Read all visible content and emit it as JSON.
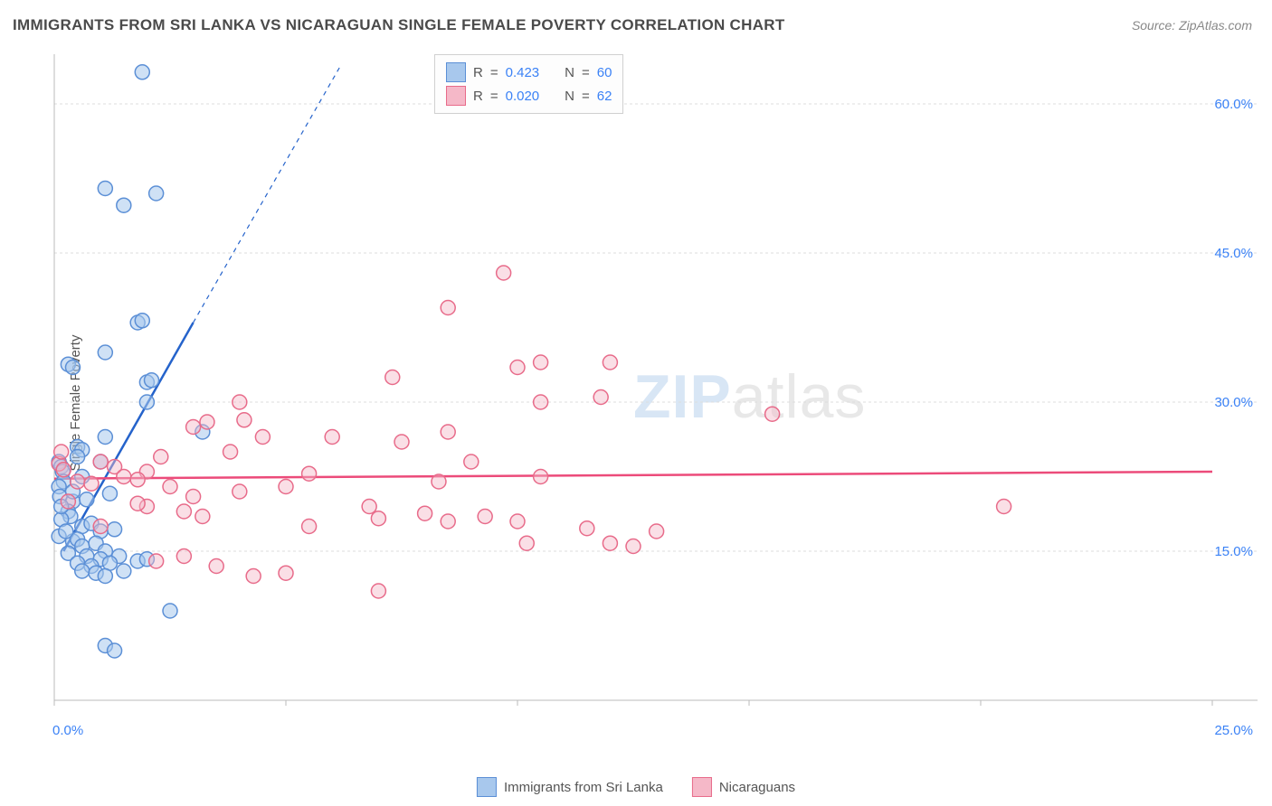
{
  "title": "IMMIGRANTS FROM SRI LANKA VS NICARAGUAN SINGLE FEMALE POVERTY CORRELATION CHART",
  "source": "Source: ZipAtlas.com",
  "y_axis_label": "Single Female Poverty",
  "watermark": {
    "zip": "ZIP",
    "atlas": "atlas"
  },
  "chart": {
    "type": "scatter",
    "xlim": [
      0,
      25
    ],
    "ylim": [
      0,
      65
    ],
    "x_ticks": [
      0,
      5,
      10,
      15,
      20,
      25
    ],
    "x_tick_labels": [
      "0.0%",
      "",
      "",
      "",
      "",
      "25.0%"
    ],
    "y_ticks": [
      15,
      30,
      45,
      60
    ],
    "y_tick_labels": [
      "15.0%",
      "30.0%",
      "45.0%",
      "60.0%"
    ],
    "grid_color": "#dddddd",
    "axis_color": "#bbbbbb",
    "background_color": "#ffffff",
    "marker_radius": 8,
    "marker_stroke_width": 1.5,
    "series": [
      {
        "name": "Immigrants from Sri Lanka",
        "color_fill": "#a8c8ed",
        "color_stroke": "#5b8fd6",
        "fill_opacity": 0.55,
        "R": "0.423",
        "N": "60",
        "trendline": {
          "x1": 0.2,
          "y1": 15,
          "x2": 3.0,
          "y2": 38,
          "solid_until_x": 3.0,
          "dash_to_x": 6.2,
          "dash_to_y": 64,
          "color": "#2563cb",
          "width": 2.5
        },
        "points": [
          [
            1.9,
            63.2
          ],
          [
            1.1,
            51.5
          ],
          [
            2.2,
            51.0
          ],
          [
            1.5,
            49.8
          ],
          [
            1.8,
            38.0
          ],
          [
            1.9,
            38.2
          ],
          [
            1.1,
            35.0
          ],
          [
            0.3,
            33.8
          ],
          [
            0.4,
            33.5
          ],
          [
            2.0,
            32.0
          ],
          [
            2.1,
            32.2
          ],
          [
            2.0,
            30.0
          ],
          [
            3.2,
            27.0
          ],
          [
            1.1,
            26.5
          ],
          [
            0.5,
            25.5
          ],
          [
            0.6,
            25.2
          ],
          [
            0.1,
            24.0
          ],
          [
            0.15,
            23.5
          ],
          [
            0.18,
            23.0
          ],
          [
            1.0,
            24.0
          ],
          [
            0.2,
            22.0
          ],
          [
            0.1,
            21.5
          ],
          [
            0.6,
            22.5
          ],
          [
            0.12,
            20.5
          ],
          [
            0.4,
            20.0
          ],
          [
            0.7,
            20.2
          ],
          [
            1.2,
            20.8
          ],
          [
            0.3,
            19.0
          ],
          [
            0.35,
            18.5
          ],
          [
            0.15,
            18.2
          ],
          [
            0.6,
            17.5
          ],
          [
            0.8,
            17.8
          ],
          [
            1.0,
            17.0
          ],
          [
            1.3,
            17.2
          ],
          [
            0.4,
            16.0
          ],
          [
            0.5,
            16.2
          ],
          [
            0.6,
            15.5
          ],
          [
            0.9,
            15.8
          ],
          [
            1.1,
            15.0
          ],
          [
            0.3,
            14.8
          ],
          [
            0.7,
            14.5
          ],
          [
            1.0,
            14.2
          ],
          [
            1.4,
            14.5
          ],
          [
            0.5,
            13.8
          ],
          [
            0.8,
            13.5
          ],
          [
            1.2,
            13.8
          ],
          [
            1.8,
            14.0
          ],
          [
            2.0,
            14.2
          ],
          [
            0.6,
            13.0
          ],
          [
            0.9,
            12.8
          ],
          [
            1.1,
            12.5
          ],
          [
            1.5,
            13.0
          ],
          [
            2.5,
            9.0
          ],
          [
            1.1,
            5.5
          ],
          [
            1.3,
            5.0
          ],
          [
            0.1,
            16.5
          ],
          [
            0.25,
            17.0
          ],
          [
            0.4,
            21.0
          ],
          [
            0.15,
            19.5
          ],
          [
            0.5,
            24.5
          ]
        ]
      },
      {
        "name": "Nicaraguans",
        "color_fill": "#f5b8c8",
        "color_stroke": "#e86b8a",
        "fill_opacity": 0.45,
        "R": "0.020",
        "N": "62",
        "trendline": {
          "x1": 0,
          "y1": 22.3,
          "x2": 25,
          "y2": 23.0,
          "color": "#ec4b7a",
          "width": 2.5
        },
        "points": [
          [
            9.7,
            43.0
          ],
          [
            8.5,
            39.5
          ],
          [
            10.5,
            34.0
          ],
          [
            12.0,
            34.0
          ],
          [
            15.5,
            28.8
          ],
          [
            7.3,
            32.5
          ],
          [
            4.0,
            30.0
          ],
          [
            3.3,
            28.0
          ],
          [
            4.1,
            28.2
          ],
          [
            3.0,
            27.5
          ],
          [
            4.5,
            26.5
          ],
          [
            8.5,
            27.0
          ],
          [
            10.0,
            33.5
          ],
          [
            7.5,
            26.0
          ],
          [
            10.5,
            30.0
          ],
          [
            2.3,
            24.5
          ],
          [
            3.8,
            25.0
          ],
          [
            1.0,
            24.0
          ],
          [
            1.3,
            23.5
          ],
          [
            2.0,
            23.0
          ],
          [
            1.5,
            22.5
          ],
          [
            0.5,
            22.0
          ],
          [
            0.8,
            21.8
          ],
          [
            1.8,
            22.2
          ],
          [
            2.5,
            21.5
          ],
          [
            3.0,
            20.5
          ],
          [
            4.0,
            21.0
          ],
          [
            2.0,
            19.5
          ],
          [
            2.8,
            19.0
          ],
          [
            0.3,
            20.0
          ],
          [
            3.2,
            18.5
          ],
          [
            5.0,
            21.5
          ],
          [
            5.5,
            22.8
          ],
          [
            6.0,
            26.5
          ],
          [
            6.8,
            19.5
          ],
          [
            7.0,
            18.3
          ],
          [
            8.0,
            18.8
          ],
          [
            8.3,
            22.0
          ],
          [
            5.5,
            17.5
          ],
          [
            9.3,
            18.5
          ],
          [
            9.0,
            24.0
          ],
          [
            10.5,
            22.5
          ],
          [
            10.0,
            18.0
          ],
          [
            11.5,
            17.3
          ],
          [
            12.0,
            15.8
          ],
          [
            12.5,
            15.5
          ],
          [
            13.0,
            17.0
          ],
          [
            10.2,
            15.8
          ],
          [
            11.8,
            30.5
          ],
          [
            4.3,
            12.5
          ],
          [
            5.0,
            12.8
          ],
          [
            7.0,
            11.0
          ],
          [
            3.5,
            13.5
          ],
          [
            2.2,
            14.0
          ],
          [
            2.8,
            14.5
          ],
          [
            1.0,
            17.5
          ],
          [
            1.8,
            19.8
          ],
          [
            0.1,
            23.8
          ],
          [
            0.2,
            23.2
          ],
          [
            0.15,
            25.0
          ],
          [
            20.5,
            19.5
          ],
          [
            8.5,
            18.0
          ]
        ]
      }
    ]
  },
  "legend_stats_label": {
    "R": "R",
    "eq": "=",
    "N": "N"
  },
  "bottom_legend": [
    {
      "label": "Immigrants from Sri Lanka",
      "fill": "#a8c8ed",
      "stroke": "#5b8fd6"
    },
    {
      "label": "Nicaraguans",
      "fill": "#f5b8c8",
      "stroke": "#e86b8a"
    }
  ]
}
